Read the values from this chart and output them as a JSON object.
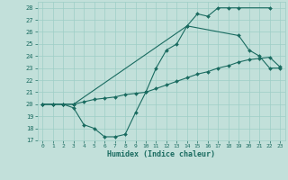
{
  "xlabel": "Humidex (Indice chaleur)",
  "xlim": [
    -0.5,
    23.5
  ],
  "ylim": [
    17,
    28.5
  ],
  "yticks": [
    17,
    18,
    19,
    20,
    21,
    22,
    23,
    24,
    25,
    26,
    27,
    28
  ],
  "xticks": [
    0,
    1,
    2,
    3,
    4,
    5,
    6,
    7,
    8,
    9,
    10,
    11,
    12,
    13,
    14,
    15,
    16,
    17,
    18,
    19,
    20,
    21,
    22,
    23
  ],
  "bg_color": "#c2e0da",
  "grid_color": "#9ecec6",
  "line_color": "#1a6b60",
  "line1_x": [
    0,
    1,
    2,
    3,
    14,
    15,
    16,
    17,
    18,
    19,
    22
  ],
  "line1_y": [
    20,
    20,
    20,
    20,
    26.5,
    27.5,
    27.3,
    28,
    28,
    28,
    28
  ],
  "line2_x": [
    0,
    1,
    2,
    3,
    4,
    5,
    6,
    7,
    8,
    9,
    10,
    11,
    12,
    13,
    14,
    15,
    16,
    17,
    18,
    19,
    20,
    21,
    22,
    23
  ],
  "line2_y": [
    20,
    20,
    20,
    20,
    20.2,
    20.4,
    20.5,
    20.6,
    20.8,
    20.9,
    21.0,
    21.3,
    21.6,
    21.9,
    22.2,
    22.5,
    22.7,
    23.0,
    23.2,
    23.5,
    23.7,
    23.8,
    23.9,
    23.1
  ],
  "line3_x": [
    0,
    1,
    2,
    3,
    4,
    5,
    6,
    7,
    8,
    9,
    10,
    11,
    12,
    13,
    14,
    19,
    20,
    21,
    22,
    23
  ],
  "line3_y": [
    20,
    20,
    20,
    19.7,
    18.3,
    18.0,
    17.3,
    17.3,
    17.5,
    19.3,
    21.0,
    23.0,
    24.5,
    25.0,
    26.5,
    25.7,
    24.5,
    24.0,
    23.0,
    23.0
  ]
}
